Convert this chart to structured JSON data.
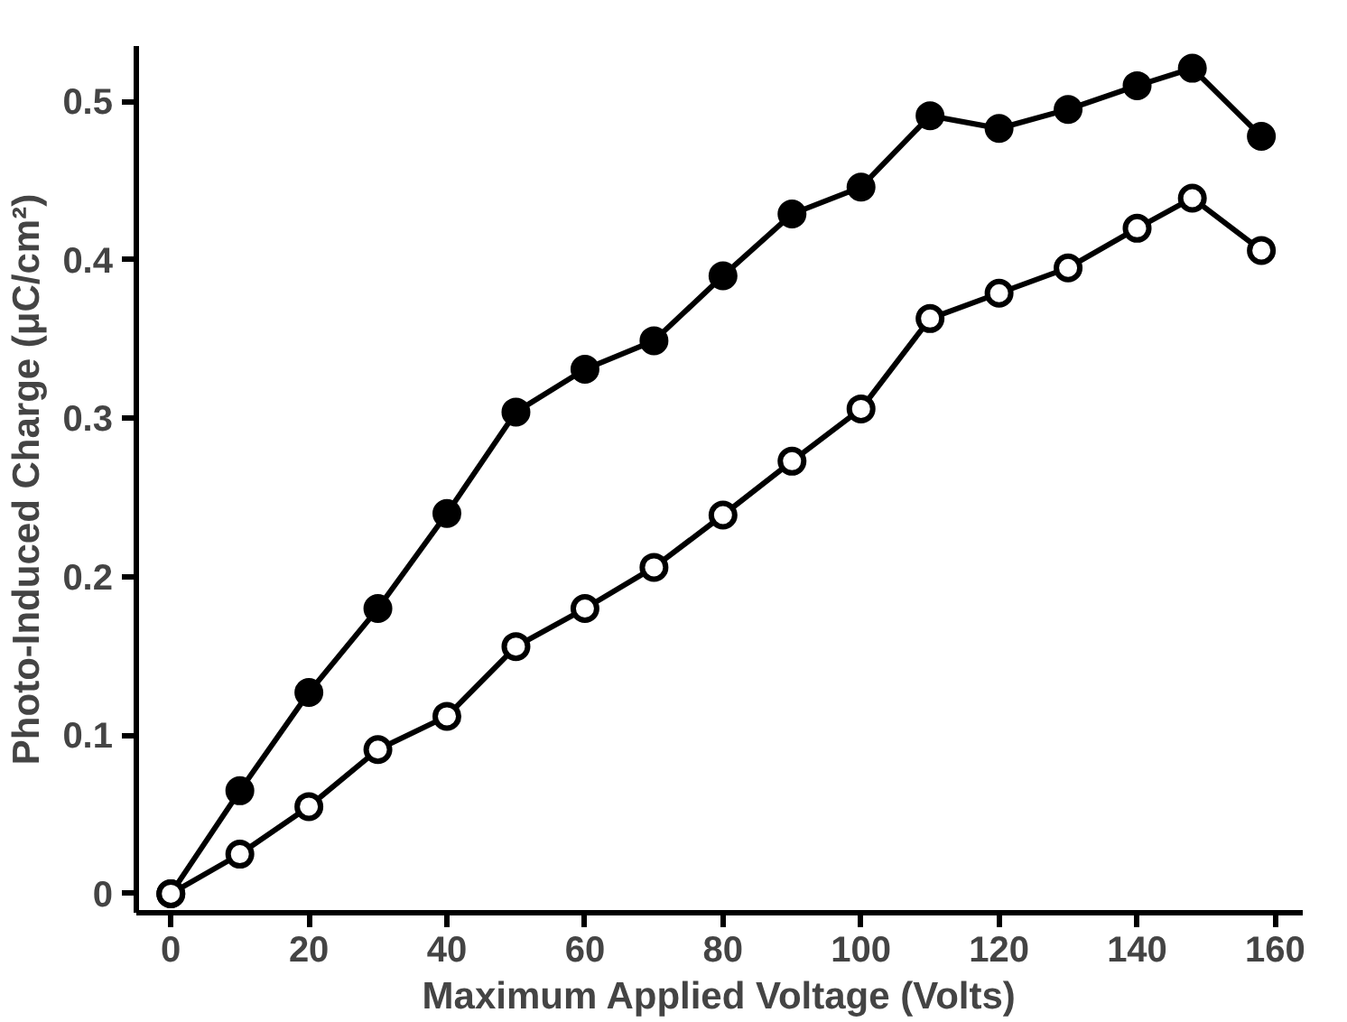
{
  "chart_data": {
    "type": "line",
    "xlabel": "Maximum Applied Voltage (Volts)",
    "ylabel": "Photo-Induced Charge (μC/cm²)",
    "x": [
      0,
      10,
      20,
      30,
      40,
      50,
      60,
      70,
      80,
      90,
      100,
      110,
      120,
      130,
      140,
      148,
      158
    ],
    "series": [
      {
        "color": "#000000",
        "marker": "circle",
        "values": [
          0,
          0.065,
          0.127,
          0.18,
          0.24,
          0.304,
          0.331,
          0.349,
          0.39,
          0.429,
          0.446,
          0.491,
          0.483,
          0.495,
          0.51,
          0.521,
          0.478
        ]
      },
      {
        "color": "#000000",
        "marker": "circle",
        "values": [
          0,
          0.025,
          0.055,
          0.091,
          0.112,
          0.156,
          0.18,
          0.206,
          0.239,
          0.273,
          0.306,
          0.363,
          0.379,
          0.395,
          0.42,
          0.439,
          0.406
        ]
      }
    ],
    "xlim": [
      -5,
      164
    ],
    "ylim": [
      -0.012,
      0.535
    ],
    "xticks": [
      0,
      20,
      40,
      60,
      80,
      100,
      120,
      140,
      160
    ],
    "yticks": [
      {
        "value": 0,
        "label": "0"
      },
      0.1,
      0.2,
      0.3,
      0.4,
      0.5
    ],
    "line_style": "solid"
  }
}
